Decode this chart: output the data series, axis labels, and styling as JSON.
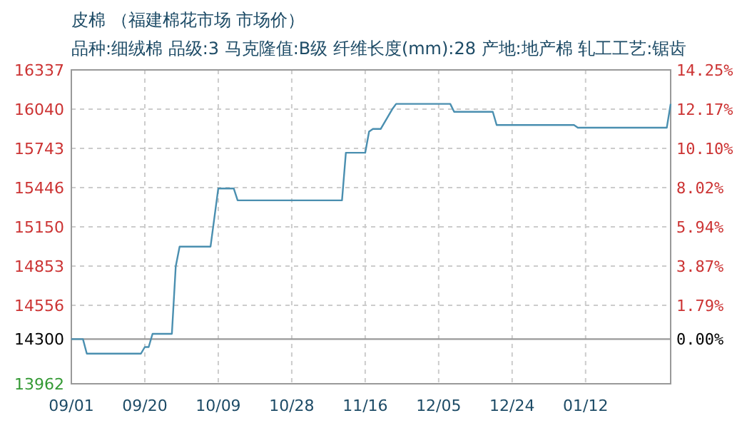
{
  "chart_data": {
    "type": "line",
    "title": "皮棉 （福建棉花市场 市场价）",
    "subtitle": "品种:细绒棉 品级:3 马克隆值:B级 纤维长度(mm):28 产地:地产棉 轧工工艺:锯齿",
    "categories": [
      "09/01",
      null,
      null,
      null,
      null,
      null,
      null,
      null,
      null,
      null,
      null,
      null,
      null,
      null,
      null,
      null,
      null,
      null,
      null,
      "09/20",
      null,
      null,
      null,
      null,
      null,
      null,
      null,
      null,
      null,
      null,
      null,
      null,
      null,
      null,
      null,
      null,
      null,
      null,
      "10/09",
      null,
      null,
      null,
      null,
      null,
      null,
      null,
      null,
      null,
      null,
      null,
      null,
      null,
      null,
      null,
      null,
      null,
      null,
      "10/28",
      null,
      null,
      null,
      null,
      null,
      null,
      null,
      null,
      null,
      null,
      null,
      null,
      null,
      null,
      null,
      null,
      null,
      null,
      "11/16",
      null,
      null,
      null,
      null,
      null,
      null,
      null,
      null,
      null,
      null,
      null,
      null,
      null,
      null,
      null,
      null,
      null,
      null,
      "12/05",
      null,
      null,
      null,
      null,
      null,
      null,
      null,
      null,
      null,
      null,
      null,
      null,
      null,
      null,
      null,
      null,
      null,
      null,
      "12/24",
      null,
      null,
      null,
      null,
      null,
      null,
      null,
      null,
      null,
      null,
      null,
      null,
      null,
      null,
      null,
      null,
      null,
      null,
      "01/12",
      null,
      null,
      null,
      null,
      null,
      null,
      null,
      null,
      null,
      null,
      null,
      null,
      null,
      null,
      null,
      null,
      null,
      null,
      null,
      null,
      null,
      null
    ],
    "series": [
      {
        "color": "#4a8fb0",
        "values": [
          14300,
          14300,
          14300,
          14300,
          14190,
          14190,
          14190,
          14190,
          14190,
          14190,
          14190,
          14190,
          14190,
          14190,
          14190,
          14190,
          14190,
          14190,
          14190,
          14240,
          14240,
          14340,
          14340,
          14340,
          14340,
          14340,
          14340,
          14850,
          15000,
          15000,
          15000,
          15000,
          15000,
          15000,
          15000,
          15000,
          15000,
          15220,
          15440,
          15440,
          15440,
          15440,
          15440,
          15350,
          15350,
          15350,
          15350,
          15350,
          15350,
          15350,
          15350,
          15350,
          15350,
          15350,
          15350,
          15350,
          15350,
          15350,
          15350,
          15350,
          15350,
          15350,
          15350,
          15350,
          15350,
          15350,
          15350,
          15350,
          15350,
          15350,
          15350,
          15710,
          15710,
          15710,
          15710,
          15710,
          15710,
          15870,
          15890,
          15890,
          15890,
          15940,
          15990,
          16040,
          16080,
          16080,
          16080,
          16080,
          16080,
          16080,
          16080,
          16080,
          16080,
          16080,
          16080,
          16080,
          16080,
          16080,
          16080,
          16020,
          16020,
          16020,
          16020,
          16020,
          16020,
          16020,
          16020,
          16020,
          16020,
          16020,
          15920,
          15920,
          15920,
          15920,
          15920,
          15920,
          15920,
          15920,
          15920,
          15920,
          15920,
          15920,
          15920,
          15920,
          15920,
          15920,
          15920,
          15920,
          15920,
          15920,
          15920,
          15900,
          15900,
          15900,
          15900,
          15900,
          15900,
          15900,
          15900,
          15900,
          15900,
          15900,
          15900,
          15900,
          15900,
          15900,
          15900,
          15900,
          15900,
          15900,
          15900,
          15900,
          15900,
          15900,
          15900,
          16080
        ]
      }
    ],
    "ylim": [
      13962,
      16337
    ],
    "yticks": [
      13962,
      14300,
      14556,
      14853,
      15150,
      15446,
      15743,
      16040,
      16337
    ],
    "y2lim": [
      -2.36,
      14.25
    ],
    "y2ticks": [
      {
        "value": 0,
        "label": "0.00%"
      },
      {
        "value": 1.79,
        "label": "1.79%"
      },
      {
        "value": 3.87,
        "label": "3.87%"
      },
      {
        "value": 5.94,
        "label": "5.94%"
      },
      {
        "value": 8.02,
        "label": "8.02%"
      },
      {
        "value": 10.1,
        "label": "10.10%"
      },
      {
        "value": 12.17,
        "label": "12.17%"
      },
      {
        "value": 14.25,
        "label": "14.25%"
      }
    ],
    "ref_lines": [
      {
        "axis": "y",
        "value": 14300,
        "color": "#999999"
      }
    ],
    "grid": true
  }
}
